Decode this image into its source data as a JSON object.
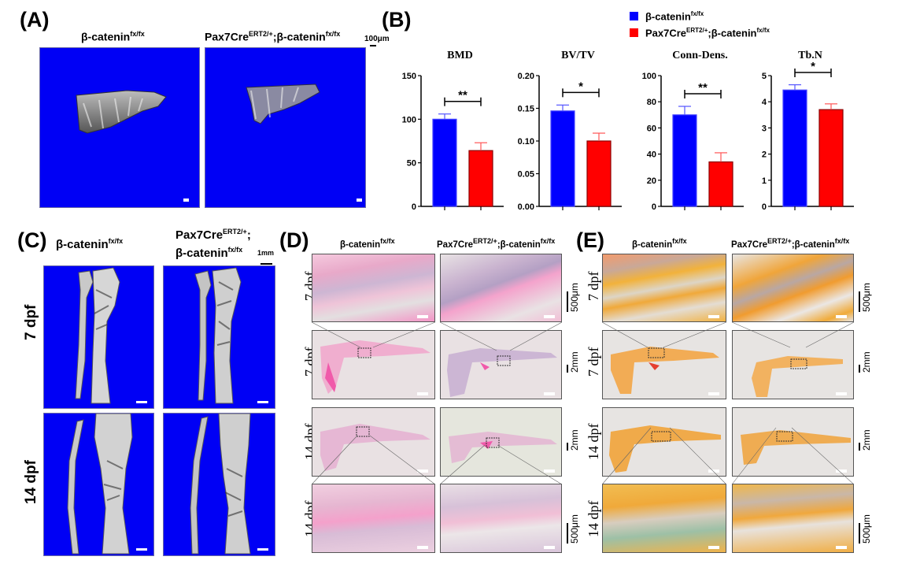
{
  "panels": {
    "A": {
      "label": "(A)",
      "groups": [
        {
          "name": "β-catenin",
          "sup": "fx/fx"
        },
        {
          "pre": "Pax7Cre",
          "pre_sup": "ERT2/+",
          "name": ";β-catenin",
          "sup": "fx/fx"
        }
      ],
      "scale": "100μm"
    },
    "B": {
      "label": "(B)"
    },
    "C": {
      "label": "(C)",
      "groups": [
        {
          "name": "β-catenin",
          "sup": "fx/fx"
        },
        {
          "pre": "Pax7Cre",
          "pre_sup": "ERT2/+",
          "name": ";",
          "line2": "β-catenin",
          "sup": "fx/fx"
        }
      ],
      "scale": "1mm",
      "rows": [
        "7 dpf",
        "14 dpf"
      ]
    },
    "D": {
      "label": "(D)",
      "groups": [
        {
          "name": "β-catenin",
          "sup": "fx/fx"
        },
        {
          "pre": "Pax7Cre",
          "pre_sup": "ERT2/+",
          "name": ";β-catenin",
          "sup": "fx/fx"
        }
      ],
      "rows": [
        "7 dpf",
        "7 dpf",
        "14 dpf",
        "14 dpf"
      ],
      "scales": [
        "500μm",
        "2mm",
        "2mm",
        "500μm"
      ]
    },
    "E": {
      "label": "(E)",
      "groups": [
        {
          "name": "β-catenin",
          "sup": "fx/fx"
        },
        {
          "pre": "Pax7Cre",
          "pre_sup": "ERT2/+",
          "name": ";β-catenin",
          "sup": "fx/fx"
        }
      ],
      "rows": [
        "7 dpf",
        "7 dpf",
        "14 dpf",
        "14 dpf"
      ],
      "scales": [
        "500μm",
        "2mm",
        "2mm",
        "500μm"
      ]
    }
  },
  "legend": [
    {
      "name": "β-catenin",
      "sup": "fx/fx",
      "color": "#0000ff"
    },
    {
      "pre": "Pax7Cre",
      "pre_sup": "ERT2/+",
      "name": ";β-catenin",
      "sup": "fx/fx",
      "color": "#ff0000"
    }
  ],
  "colors": {
    "control": "#0000ff",
    "mutant": "#ff0000",
    "ct_background": "#0000f5"
  },
  "chart_data": [
    {
      "type": "bar",
      "title": "BMD",
      "categories": [
        "β-catenin fx/fx",
        "Pax7CreERT2/+;β-catenin fx/fx"
      ],
      "values": [
        100,
        64
      ],
      "errors": [
        6,
        9
      ],
      "ylim": [
        0,
        150
      ],
      "yticks": [
        "0",
        "50",
        "100",
        "150"
      ],
      "tick_values": [
        0,
        50,
        100,
        150
      ],
      "significance": "**",
      "xlabel": "",
      "ylabel": ""
    },
    {
      "type": "bar",
      "title": "BV/TV",
      "categories": [
        "β-catenin fx/fx",
        "Pax7CreERT2/+;β-catenin fx/fx"
      ],
      "values": [
        0.146,
        0.1
      ],
      "errors": [
        0.009,
        0.012
      ],
      "ylim": [
        0,
        0.2
      ],
      "yticks": [
        "0.00",
        "0.05",
        "0.10",
        "0.15",
        "0.20"
      ],
      "tick_values": [
        0,
        0.05,
        0.1,
        0.15,
        0.2
      ],
      "significance": "*",
      "xlabel": "",
      "ylabel": ""
    },
    {
      "type": "bar",
      "title": "Conn-Dens.",
      "categories": [
        "β-catenin fx/fx",
        "Pax7CreERT2/+;β-catenin fx/fx"
      ],
      "values": [
        70,
        34
      ],
      "errors": [
        6.5,
        7
      ],
      "ylim": [
        0,
        100
      ],
      "yticks": [
        "0",
        "20",
        "40",
        "60",
        "80",
        "100"
      ],
      "tick_values": [
        0,
        20,
        40,
        60,
        80,
        100
      ],
      "significance": "**",
      "xlabel": "",
      "ylabel": ""
    },
    {
      "type": "bar",
      "title": "Tb.N",
      "categories": [
        "β-catenin fx/fx",
        "Pax7CreERT2/+;β-catenin fx/fx"
      ],
      "values": [
        4.45,
        3.7
      ],
      "errors": [
        0.2,
        0.22
      ],
      "ylim": [
        0,
        5
      ],
      "yticks": [
        "0",
        "1",
        "2",
        "3",
        "4",
        "5"
      ],
      "tick_values": [
        0,
        1,
        2,
        3,
        4,
        5
      ],
      "significance": "*",
      "xlabel": "",
      "ylabel": ""
    }
  ]
}
